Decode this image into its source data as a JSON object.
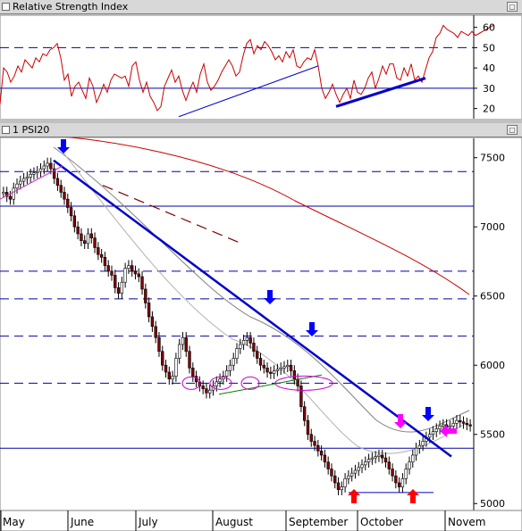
{
  "rsi_panel": {
    "title": "Relative Strength Index",
    "ticks": [
      20,
      30,
      40,
      50,
      60
    ],
    "ylim": [
      15,
      66
    ],
    "levels": [
      30,
      50
    ],
    "max_button": "▢"
  },
  "price_panel": {
    "title": "1 PSI20",
    "ticks": [
      5000,
      5500,
      6000,
      6500,
      7000,
      7500
    ],
    "ylim": [
      4950,
      7640
    ],
    "h_lines_solid": [
      7150,
      5400
    ],
    "h_lines_dashed": [
      7400,
      6680,
      6480,
      6210,
      5870
    ],
    "x_labels": [
      "May",
      "June",
      "July",
      "August",
      "September",
      "October",
      "Novem"
    ],
    "max_button": "▢"
  },
  "colors": {
    "up_candle": "#ffffff",
    "down_candle": "#800000",
    "rsi_line": "#cc0000",
    "trend_line": "#0000cc",
    "ma_long": "#cc0000",
    "ma_short": "#808080",
    "arrow_blue": "#0000ff",
    "arrow_red": "#ff0000",
    "arrow_magenta": "#ff00ff",
    "ellipse": "#cc00cc",
    "green_line": "#008000"
  },
  "chart_data": [
    {
      "type": "line",
      "title": "Relative Strength Index",
      "ylim": [
        15,
        66
      ],
      "x": [
        0,
        4,
        8,
        12,
        16,
        20,
        24,
        28,
        32,
        36,
        40,
        44,
        48,
        52,
        56,
        60,
        64,
        68,
        72,
        76,
        80,
        84,
        88,
        92,
        96,
        100,
        104,
        108,
        112,
        116,
        120,
        124,
        128,
        132,
        136,
        140,
        144,
        148,
        152,
        156,
        160,
        164,
        168,
        172,
        176,
        180,
        184,
        188,
        192,
        196,
        200,
        204,
        208,
        212,
        216,
        220,
        224,
        228,
        232,
        236,
        240,
        244,
        248,
        252,
        256,
        260,
        264,
        268,
        272,
        276,
        280,
        284,
        288,
        292,
        296,
        300,
        304,
        308,
        312,
        316,
        320,
        324,
        328,
        332,
        336,
        340,
        344,
        348,
        352,
        356,
        360,
        364,
        368,
        372,
        376,
        380,
        384,
        388,
        392,
        396,
        400,
        404,
        408,
        412,
        416,
        420,
        424,
        428,
        432,
        436,
        440,
        444,
        448,
        452,
        456,
        460,
        464,
        468,
        472,
        476,
        480,
        484,
        488,
        492,
        496,
        500,
        504,
        508,
        512,
        516,
        520,
        524,
        528,
        532,
        536,
        540,
        544,
        548,
        552
      ],
      "values": [
        22,
        40,
        38,
        33,
        36,
        41,
        38,
        44,
        42,
        40,
        45,
        43,
        47,
        46,
        49,
        50,
        52,
        45,
        34,
        37,
        26,
        31,
        33,
        29,
        25,
        35,
        31,
        23,
        27,
        32,
        28,
        34,
        37,
        36,
        35,
        36,
        31,
        41,
        43,
        34,
        28,
        33,
        26,
        23,
        19,
        21,
        31,
        35,
        39,
        33,
        36,
        29,
        24,
        29,
        33,
        28,
        37,
        42,
        33,
        29,
        31,
        34,
        38,
        41,
        44,
        41,
        36,
        38,
        46,
        52,
        54,
        47,
        51,
        49,
        53,
        51,
        48,
        44,
        46,
        43,
        48,
        45,
        49,
        41,
        40,
        43,
        45,
        44,
        49,
        41,
        30,
        25,
        28,
        32,
        27,
        23,
        27,
        30,
        25,
        34,
        28,
        27,
        30,
        35,
        38,
        30,
        35,
        41,
        37,
        42,
        42,
        35,
        34,
        40,
        36,
        42,
        34,
        36,
        33,
        39,
        45,
        48,
        55,
        57,
        61,
        59,
        58,
        57,
        55,
        58,
        57,
        56,
        58,
        56,
        57,
        58,
        59,
        60,
        61
      ],
      "levels": [
        30,
        50
      ]
    },
    {
      "type": "candlestick",
      "title": "1 PSI20",
      "xlabel": "",
      "ylabel": "",
      "ylim": [
        4950,
        7640
      ],
      "x_labels": [
        "May",
        "June",
        "July",
        "August",
        "September",
        "October",
        "Novem"
      ],
      "series": [
        {
          "values": [
            7250,
            7220,
            7200,
            7280,
            7310,
            7330,
            7350,
            7360,
            7380,
            7390,
            7400,
            7420,
            7440,
            7460,
            7420,
            7350,
            7300,
            7250,
            7200,
            7140,
            7080,
            7000,
            6950,
            6900,
            6880,
            6950,
            6920,
            6850,
            6800,
            6780,
            6720,
            6680,
            6650,
            6560,
            6520,
            6600,
            6700,
            6720,
            6680,
            6660,
            6640,
            6550,
            6450,
            6350,
            6280,
            6200,
            6100,
            6000,
            5950,
            5900,
            5920,
            6050,
            6150,
            6200,
            6100,
            5980,
            5920,
            5880,
            5850,
            5830,
            5800,
            5820,
            5850,
            5880,
            5900,
            5920,
            5960,
            6000,
            6050,
            6120,
            6150,
            6180,
            6200,
            6160,
            6100,
            6050,
            6000,
            5980,
            5950,
            5940,
            5960,
            5970,
            5980,
            5990,
            6000,
            5960,
            5900,
            5850,
            5700,
            5600,
            5500,
            5450,
            5420,
            5380,
            5350,
            5300,
            5250,
            5200,
            5150,
            5100,
            5120,
            5180,
            5200,
            5220,
            5240,
            5260,
            5280,
            5300,
            5320,
            5330,
            5340,
            5350,
            5330,
            5300,
            5250,
            5200,
            5150,
            5120,
            5180,
            5250,
            5300,
            5350,
            5400,
            5420,
            5450,
            5480,
            5500,
            5520,
            5540,
            5560,
            5570,
            5550,
            5560,
            5580,
            5600,
            5590,
            5580,
            5570,
            5560
          ]
        }
      ],
      "h_lines": [
        7400,
        7150,
        6680,
        6480,
        6210,
        5870,
        5400
      ]
    }
  ]
}
